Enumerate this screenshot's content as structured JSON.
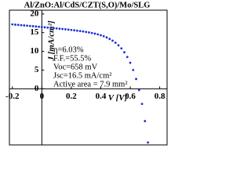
{
  "chart_data": {
    "type": "scatter",
    "title": "Al/ZnO:Al/CdS/CZT(S,O)/Mo/SLG",
    "x_label": "V [V]",
    "y_label": "J [mA/cm²]",
    "annotations": [
      "η=6.03%",
      "F.F.=55.5%",
      "Voc=658 mV",
      "Jsc=16.5 mA/cm²",
      "Active area = 7.9 mm²"
    ],
    "xlim": [
      -0.22,
      0.85
    ],
    "ylim": [
      -15,
      21
    ],
    "xticks": [
      -0.2,
      0,
      0.2,
      0.4,
      0.6,
      0.8
    ],
    "yticks": [
      0,
      5,
      10,
      15,
      20
    ],
    "series": [
      {
        "color": "#1f2fd6",
        "x": [
          -0.2,
          -0.18,
          -0.16,
          -0.14,
          -0.12,
          -0.1,
          -0.08,
          -0.06,
          -0.04,
          -0.02,
          0,
          0.02,
          0.04,
          0.06,
          0.08,
          0.1,
          0.12,
          0.14,
          0.16,
          0.18,
          0.2,
          0.22,
          0.24,
          0.26,
          0.28,
          0.3,
          0.32,
          0.34,
          0.36,
          0.38,
          0.4,
          0.42,
          0.44,
          0.46,
          0.48,
          0.5,
          0.52,
          0.54,
          0.56,
          0.58,
          0.6,
          0.62,
          0.64,
          0.66,
          0.68,
          0.7,
          0.72
        ],
        "values": [
          17.21,
          17.14,
          17.07,
          17.0,
          16.93,
          16.86,
          16.79,
          16.72,
          16.64,
          16.57,
          16.5,
          16.43,
          16.35,
          16.28,
          16.21,
          16.13,
          16.05,
          15.97,
          15.89,
          15.81,
          15.72,
          15.63,
          15.53,
          15.43,
          15.32,
          15.19,
          15.06,
          14.9,
          14.73,
          14.53,
          14.3,
          14.03,
          13.71,
          13.32,
          12.86,
          12.3,
          11.62,
          10.79,
          9.76,
          8.5,
          6.94,
          5.01,
          2.62,
          -0.35,
          -4.03,
          -8.63,
          -14.34
        ]
      }
    ]
  }
}
